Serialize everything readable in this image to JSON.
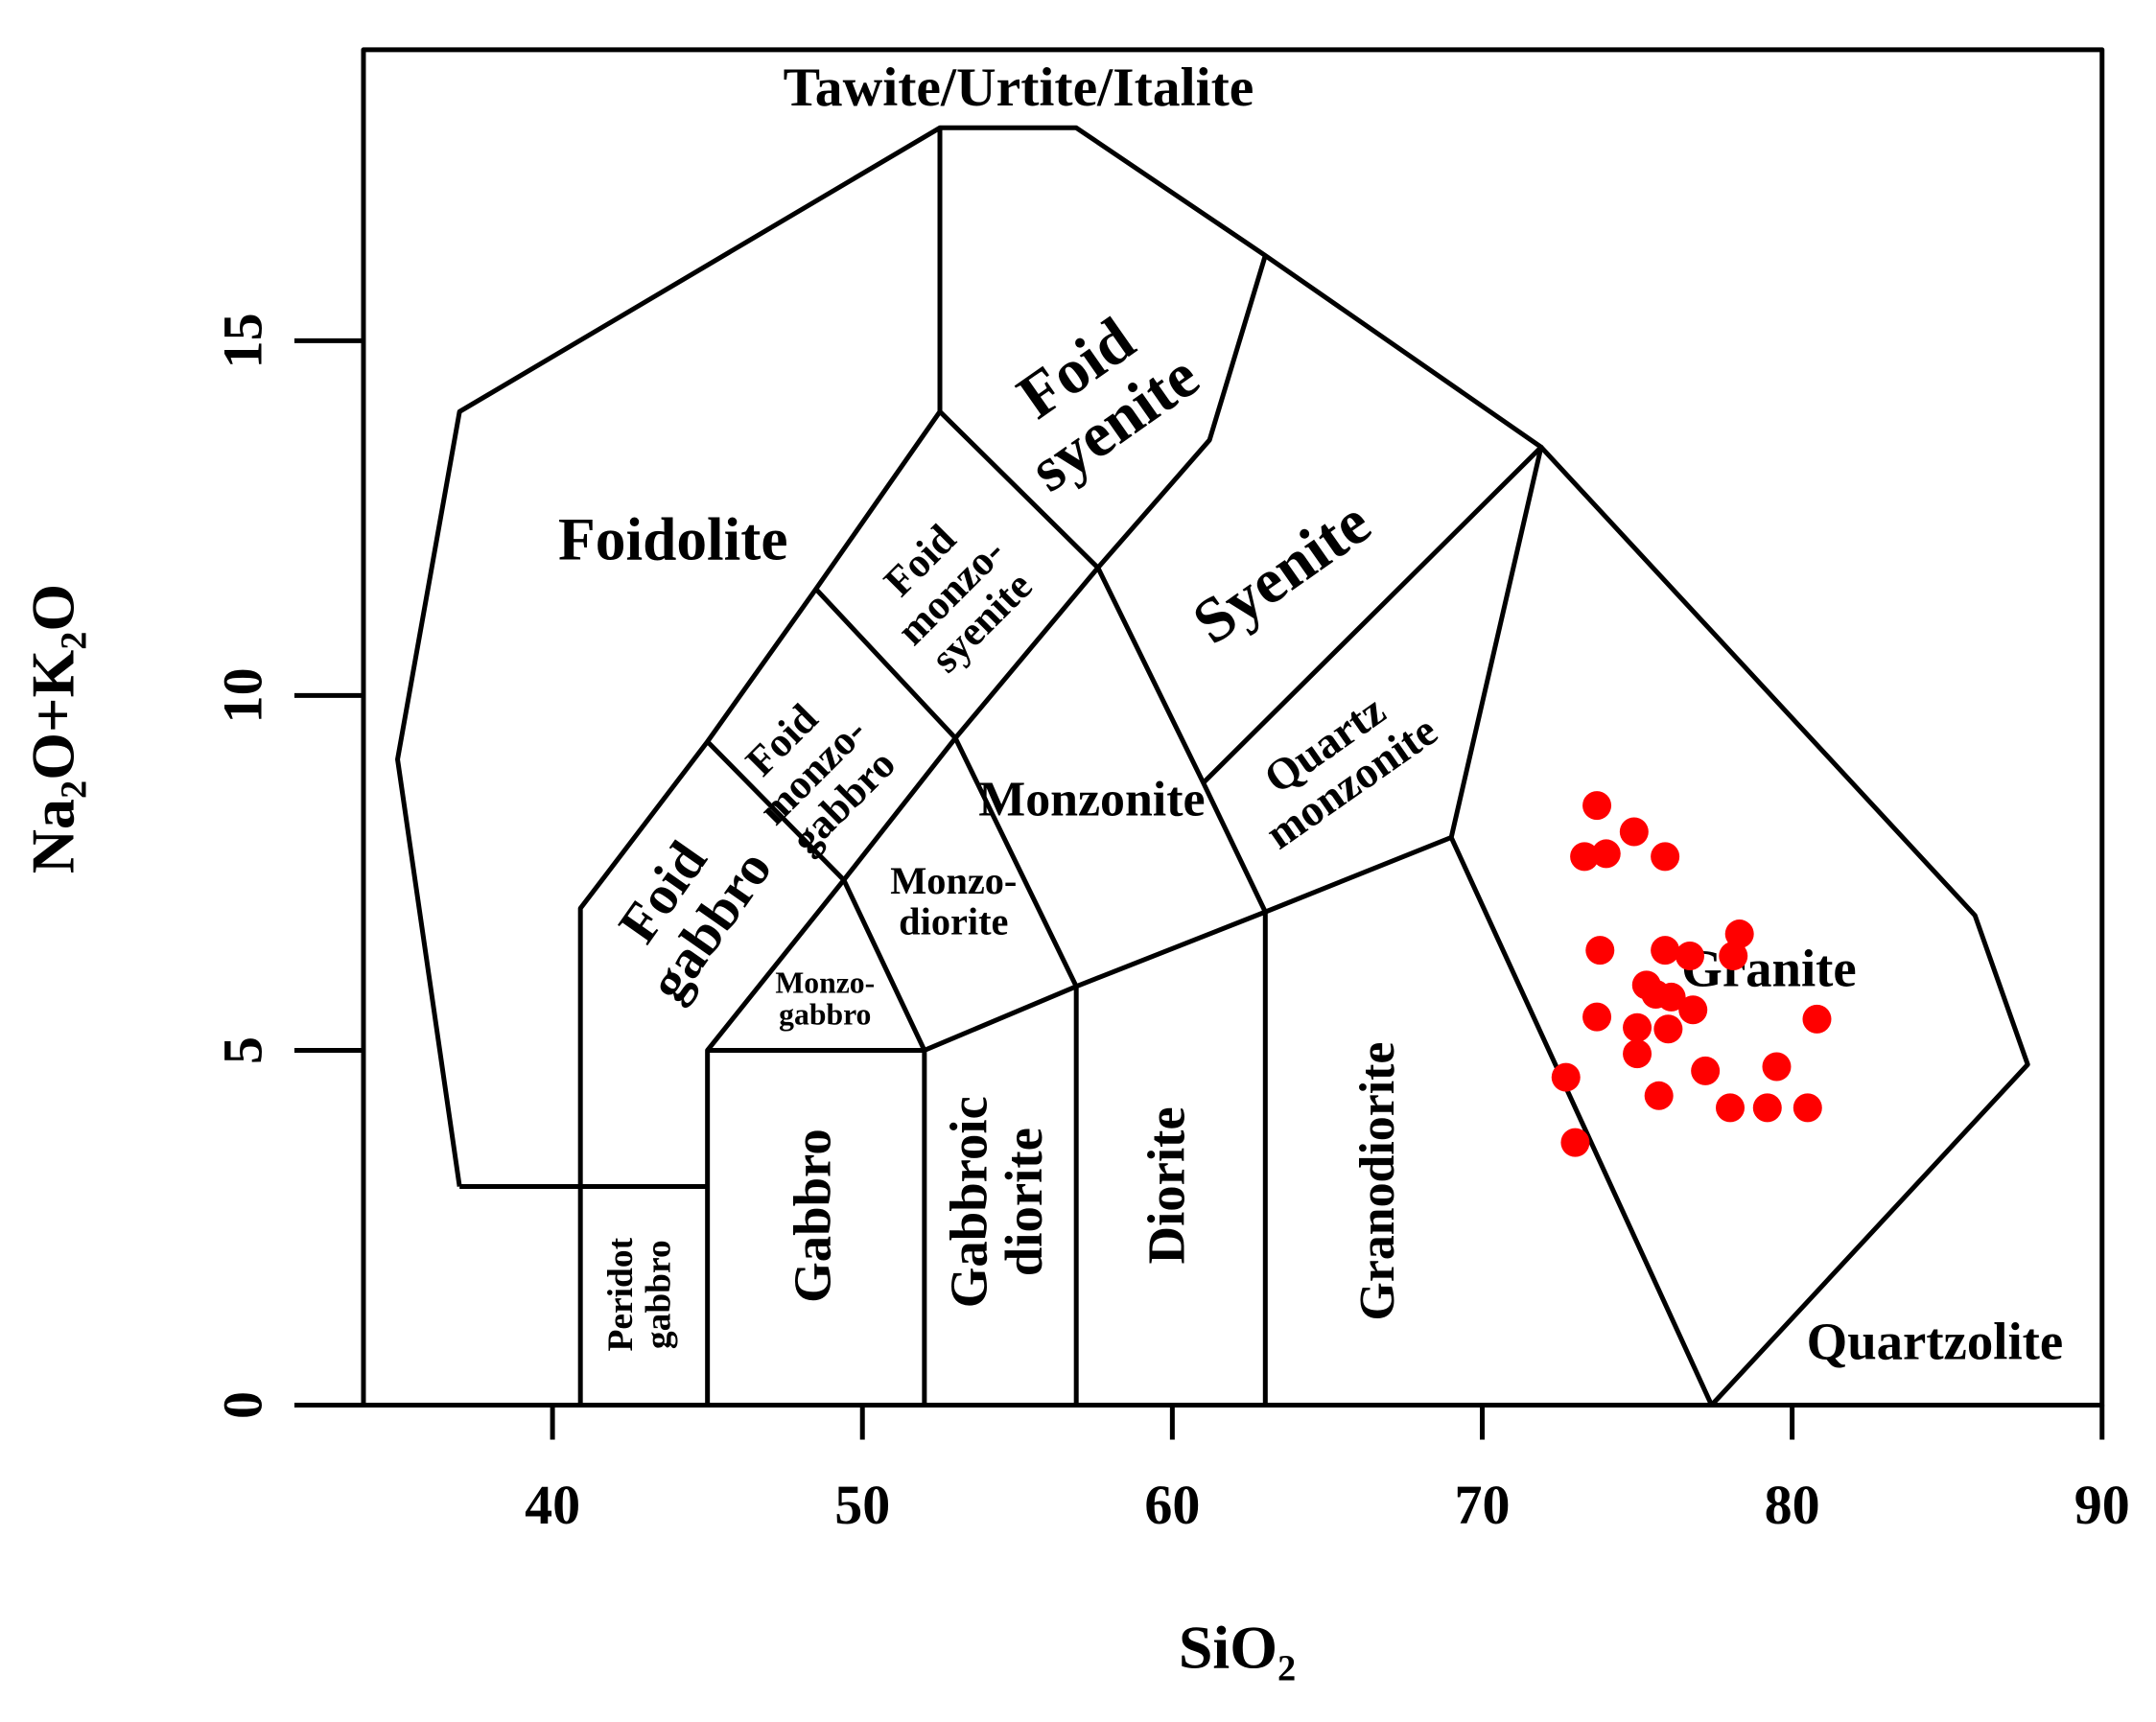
{
  "chart_data": {
    "type": "scatter",
    "xlabel": "SiO₂",
    "ylabel": "Na₂O+K₂O",
    "xlim": [
      33.9,
      90
    ],
    "ylim": [
      0,
      19.1
    ],
    "xticks": [
      40,
      50,
      60,
      70,
      80,
      90
    ],
    "yticks": [
      0,
      5,
      10,
      15
    ],
    "color": "#ff0000",
    "x": [
      73.7,
      73.3,
      74.0,
      74.9,
      75.9,
      73.8,
      75.9,
      76.7,
      78.3,
      78.1,
      75.3,
      75.6,
      76.1,
      76.8,
      73.7,
      75.0,
      76.0,
      75.0,
      77.2,
      79.5,
      80.8,
      72.7,
      75.7,
      78.0,
      79.2,
      80.5,
      73.0
    ],
    "y": [
      8.45,
      7.73,
      7.77,
      8.08,
      7.73,
      6.41,
      6.41,
      6.33,
      6.64,
      6.33,
      5.92,
      5.79,
      5.75,
      5.57,
      5.47,
      5.32,
      5.3,
      4.95,
      4.71,
      4.77,
      5.44,
      4.62,
      4.36,
      4.19,
      4.19,
      4.19,
      3.7
    ],
    "annotations": [
      "Tawite/Urtite/Italite",
      "Foidolite",
      [
        "Foid",
        "syenite"
      ],
      "Syenite",
      [
        "Foid",
        "monzo-",
        "syenite"
      ],
      [
        "Foid",
        "monzo-",
        "gabbro"
      ],
      "Monzonite",
      [
        "Quartz",
        "monzonite"
      ],
      [
        "Foid",
        "gabbro"
      ],
      [
        "Monzo-",
        "diorite"
      ],
      [
        "Monzo-",
        "gabbro"
      ],
      "Granite",
      [
        "Peridot",
        "gabbro"
      ],
      "Gabbro",
      [
        "Gabbroic",
        "diorite"
      ],
      "Diorite",
      "Granodiorite",
      "Quartzolite"
    ]
  }
}
